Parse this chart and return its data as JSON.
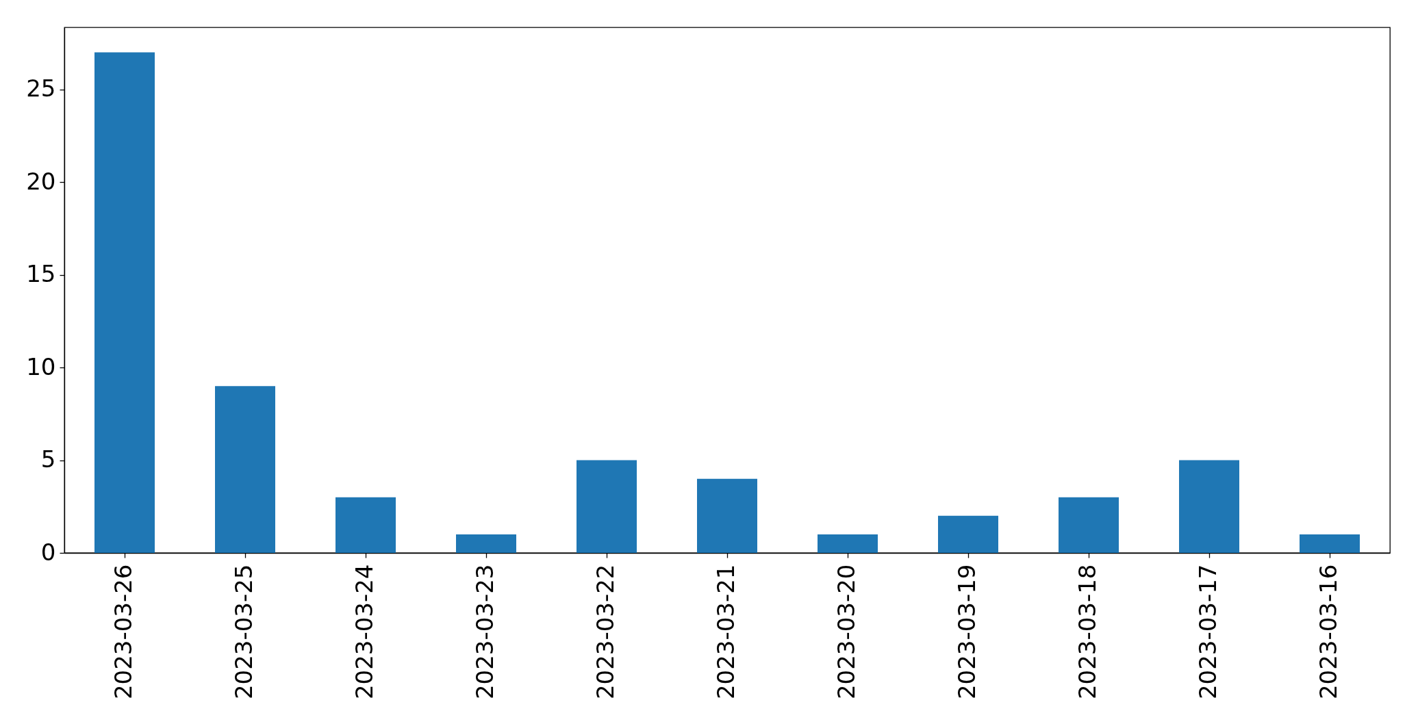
{
  "chart_data": {
    "type": "bar",
    "categories": [
      "2023-03-26",
      "2023-03-25",
      "2023-03-24",
      "2023-03-23",
      "2023-03-22",
      "2023-03-21",
      "2023-03-20",
      "2023-03-19",
      "2023-03-18",
      "2023-03-17",
      "2023-03-16"
    ],
    "values": [
      27,
      9,
      3,
      1,
      5,
      4,
      1,
      2,
      3,
      5,
      1
    ],
    "color": "#1f77b4",
    "ylim": [
      0,
      28.35
    ],
    "yticks": [
      0,
      5,
      10,
      15,
      20,
      25
    ],
    "grid": false
  }
}
